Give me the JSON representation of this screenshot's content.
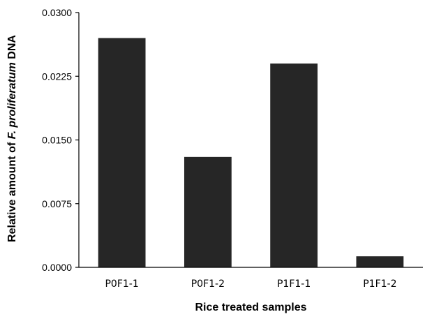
{
  "chart_data": {
    "type": "bar",
    "categories": [
      "P0F1-1",
      "P0F1-2",
      "P1F1-1",
      "P1F1-2"
    ],
    "values": [
      0.027,
      0.013,
      0.024,
      0.0013
    ],
    "xlabel": "Rice treated samples",
    "ylabel_parts": {
      "prefix": "Relative amount of ",
      "species": "F. proliferatum",
      "suffix": " DNA"
    },
    "ylim": [
      0,
      0.03
    ],
    "yticks": [
      "0.0000",
      "0.0075",
      "0.0150",
      "0.0225",
      "0.0300"
    ],
    "ytick_values": [
      0,
      0.0075,
      0.015,
      0.0225,
      0.03
    ],
    "bar_color": "#262626",
    "grid": false,
    "legend": false
  }
}
